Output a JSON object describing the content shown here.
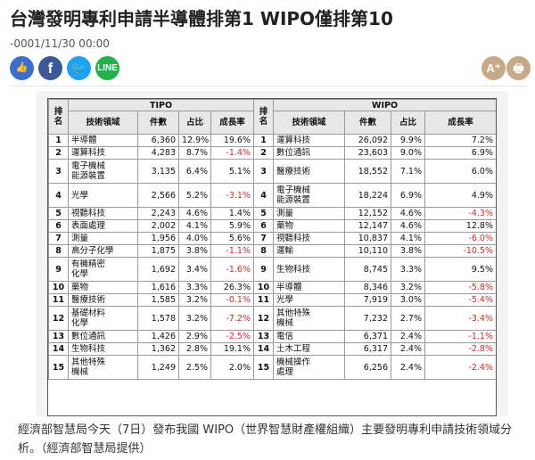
{
  "headline": "台灣發明專利申請半導體排第1 WIPO僅排第10",
  "date": "-0001/11/30 00:00",
  "share": {
    "like_label": "👍",
    "facebook_label": "f",
    "twitter_label": "🐦",
    "line_label": "LINE",
    "font_size_label": "A⁺",
    "print_label": "🖶"
  },
  "table": {
    "tipo_title": "TIPO",
    "wipo_title": "WIPO",
    "columns": {
      "rank": "排名",
      "field": "技術領域",
      "count": "件數",
      "share": "占比",
      "growth": "成長率"
    },
    "rows": [
      {
        "rank": "1",
        "tipo": {
          "field": "半導體",
          "count": "6,360",
          "share": "12.9%",
          "growth": "19.6%",
          "neg": false
        },
        "wipo": {
          "field": "運算科技",
          "count": "26,092",
          "share": "9.9%",
          "growth": "7.2%",
          "neg": false
        }
      },
      {
        "rank": "2",
        "tipo": {
          "field": "運算科技",
          "count": "4,283",
          "share": "8.7%",
          "growth": "-1.4%",
          "neg": true
        },
        "wipo": {
          "field": "數位通訊",
          "count": "23,603",
          "share": "9.0%",
          "growth": "6.9%",
          "neg": false
        }
      },
      {
        "rank": "3",
        "tipo": {
          "field": "電子機械\n能源裝置",
          "count": "3,135",
          "share": "6.4%",
          "growth": "5.1%",
          "neg": false
        },
        "wipo": {
          "field": "醫療技術",
          "count": "18,552",
          "share": "7.1%",
          "growth": "6.0%",
          "neg": false
        }
      },
      {
        "rank": "4",
        "tipo": {
          "field": "光學",
          "count": "2,566",
          "share": "5.2%",
          "growth": "-3.1%",
          "neg": true
        },
        "wipo": {
          "field": "電子機械\n能源裝置",
          "count": "18,224",
          "share": "6.9%",
          "growth": "4.9%",
          "neg": false
        }
      },
      {
        "rank": "5",
        "tipo": {
          "field": "視聽科技",
          "count": "2,243",
          "share": "4.6%",
          "growth": "1.4%",
          "neg": false
        },
        "wipo": {
          "field": "測量",
          "count": "12,152",
          "share": "4.6%",
          "growth": "-4.3%",
          "neg": true
        }
      },
      {
        "rank": "6",
        "tipo": {
          "field": "表面處理",
          "count": "2,002",
          "share": "4.1%",
          "growth": "5.9%",
          "neg": false
        },
        "wipo": {
          "field": "藥物",
          "count": "12,147",
          "share": "4.6%",
          "growth": "12.8%",
          "neg": false
        }
      },
      {
        "rank": "7",
        "tipo": {
          "field": "測量",
          "count": "1,956",
          "share": "4.0%",
          "growth": "5.6%",
          "neg": false
        },
        "wipo": {
          "field": "視聽科技",
          "count": "10,837",
          "share": "4.1%",
          "growth": "-6.0%",
          "neg": true
        }
      },
      {
        "rank": "8",
        "tipo": {
          "field": "高分子化學",
          "count": "1,875",
          "share": "3.8%",
          "growth": "-1.1%",
          "neg": true
        },
        "wipo": {
          "field": "運輸",
          "count": "10,110",
          "share": "3.8%",
          "growth": "-10.5%",
          "neg": true
        }
      },
      {
        "rank": "9",
        "tipo": {
          "field": "有機精密\n化學",
          "count": "1,692",
          "share": "3.4%",
          "growth": "-1.6%",
          "neg": true
        },
        "wipo": {
          "field": "生物科技",
          "count": "8,745",
          "share": "3.3%",
          "growth": "9.5%",
          "neg": false
        }
      },
      {
        "rank": "10",
        "tipo": {
          "field": "藥物",
          "count": "1,616",
          "share": "3.3%",
          "growth": "26.3%",
          "neg": false
        },
        "wipo": {
          "field": "半導體",
          "count": "8,346",
          "share": "3.2%",
          "growth": "-5.8%",
          "neg": true
        }
      },
      {
        "rank": "11",
        "tipo": {
          "field": "醫療技術",
          "count": "1,585",
          "share": "3.2%",
          "growth": "-0.1%",
          "neg": true
        },
        "wipo": {
          "field": "光學",
          "count": "7,919",
          "share": "3.0%",
          "growth": "-5.4%",
          "neg": true
        }
      },
      {
        "rank": "12",
        "tipo": {
          "field": "基礎材料\n化學",
          "count": "1,578",
          "share": "3.2%",
          "growth": "-7.2%",
          "neg": true
        },
        "wipo": {
          "field": "其他特殊\n機械",
          "count": "7,232",
          "share": "2.7%",
          "growth": "-3.4%",
          "neg": true
        }
      },
      {
        "rank": "13",
        "tipo": {
          "field": "數位通訊",
          "count": "1,426",
          "share": "2.9%",
          "growth": "-2.5%",
          "neg": true
        },
        "wipo": {
          "field": "電信",
          "count": "6,371",
          "share": "2.4%",
          "growth": "-1.1%",
          "neg": true
        }
      },
      {
        "rank": "14",
        "tipo": {
          "field": "生物科技",
          "count": "1,362",
          "share": "2.8%",
          "growth": "19.1%",
          "neg": false
        },
        "wipo": {
          "field": "土木工程",
          "count": "6,317",
          "share": "2.4%",
          "growth": "-2.8%",
          "neg": true
        }
      },
      {
        "rank": "15",
        "tipo": {
          "field": "其他特殊\n機械",
          "count": "1,249",
          "share": "2.5%",
          "growth": "2.0%",
          "neg": false
        },
        "wipo": {
          "field": "機械操作\n處理",
          "count": "6,256",
          "share": "2.4%",
          "growth": "-2.4%",
          "neg": true
        }
      }
    ]
  },
  "caption": "經濟部智慧局今天（7日）發布我國 WIPO（世界智慧財產權組織）主要發明專利申請技術領域分析。（經濟部智慧局提供）",
  "colors": {
    "negative": "#d62a2a",
    "header_bg": "#e8e8e8",
    "like": "#3b6dd0",
    "facebook": "#3b5998",
    "twitter": "#1da1f2",
    "line": "#21b34a",
    "tool": "#c7a98a"
  }
}
